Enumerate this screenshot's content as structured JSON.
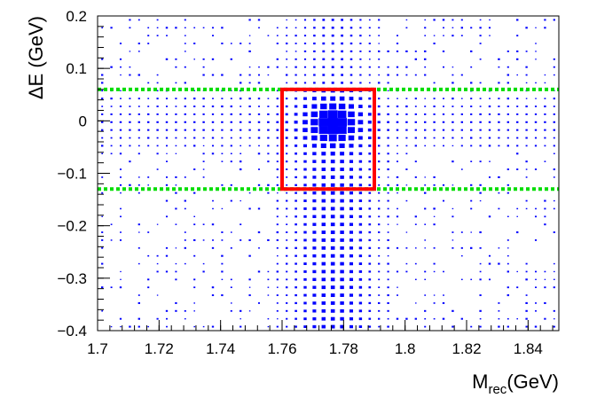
{
  "chart_data": {
    "type": "heatmap",
    "title": "",
    "xlabel": {
      "main": "M",
      "sub": "rec",
      "unit": "(GeV)"
    },
    "ylabel": "ΔE (GeV)",
    "xlim": [
      1.7,
      1.85
    ],
    "ylim": [
      -0.4,
      0.2
    ],
    "x_ticks": [
      1.7,
      1.72,
      1.74,
      1.76,
      1.78,
      1.8,
      1.82,
      1.84
    ],
    "x_tick_labels": [
      "1.7",
      "1.72",
      "1.74",
      "1.76",
      "1.78",
      "1.8",
      "1.82",
      "1.84"
    ],
    "y_ticks": [
      -0.4,
      -0.3,
      -0.2,
      -0.1,
      0,
      0.1,
      0.2
    ],
    "y_tick_labels": [
      "−0.4",
      "−0.3",
      "−0.2",
      "−0.1",
      "0",
      "0.1",
      "0.2"
    ],
    "bins": {
      "nx": 50,
      "ny": 40,
      "x_range": [
        1.7,
        1.85
      ],
      "y_range": [
        -0.4,
        0.2
      ]
    },
    "peak": {
      "x": 1.7765,
      "y": -0.005
    },
    "signal_region": {
      "x": [
        1.76,
        1.79
      ],
      "y": [
        -0.13,
        0.06
      ],
      "color": "#ff0000"
    },
    "sideband_lines": {
      "y": [
        0.06,
        -0.13
      ],
      "color": "#00dd00",
      "style": "dotted"
    },
    "marker_color": "#0000ff",
    "grid": false,
    "legend": "none"
  }
}
